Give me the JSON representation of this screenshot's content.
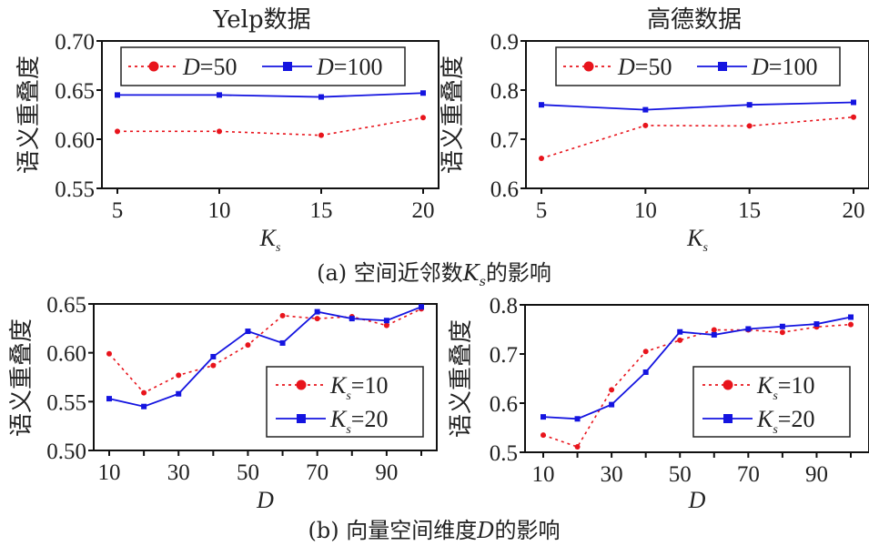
{
  "captions": {
    "a": "(a) 空间近邻数K的影响",
    "a_prefix": "(a) 空间近邻数",
    "a_var": "K",
    "a_sub": "s",
    "a_suffix": "的影响",
    "b_prefix": "(b) 向量空间维度",
    "b_var": "D",
    "b_suffix": "的影响"
  },
  "chart_data": [
    {
      "id": "a-yelp",
      "type": "line",
      "title": "Yelp数据",
      "xlabel": "K",
      "xlabel_sub": "s",
      "ylabel": "语义重叠度",
      "x": [
        5,
        10,
        15,
        20
      ],
      "xticks": [
        "5",
        "10",
        "15",
        "20"
      ],
      "ylim": [
        0.55,
        0.7
      ],
      "yticks": [
        "0.55",
        "0.60",
        "0.65",
        "0.70"
      ],
      "yticks_values": [
        0.55,
        0.6,
        0.65,
        0.7
      ],
      "legend": "top",
      "grid": false,
      "series": [
        {
          "name": "D=50",
          "var": "D",
          "eq": "=50",
          "color": "#e8141c",
          "style": "dotted",
          "marker": "circle",
          "values": [
            0.608,
            0.608,
            0.604,
            0.622
          ]
        },
        {
          "name": "D=100",
          "var": "D",
          "eq": "=100",
          "color": "#1414e0",
          "style": "solid",
          "marker": "square",
          "values": [
            0.645,
            0.645,
            0.643,
            0.647
          ]
        }
      ]
    },
    {
      "id": "a-gaode",
      "type": "line",
      "title": "高德数据",
      "xlabel": "K",
      "xlabel_sub": "s",
      "ylabel": "语义重叠度",
      "x": [
        5,
        10,
        15,
        20
      ],
      "xticks": [
        "5",
        "10",
        "15",
        "20"
      ],
      "ylim": [
        0.6,
        0.9
      ],
      "yticks": [
        "0.6",
        "0.7",
        "0.8",
        "0.9"
      ],
      "yticks_values": [
        0.6,
        0.7,
        0.8,
        0.9
      ],
      "legend": "top",
      "grid": false,
      "series": [
        {
          "name": "D=50",
          "var": "D",
          "eq": "=50",
          "color": "#e8141c",
          "style": "dotted",
          "marker": "circle",
          "values": [
            0.661,
            0.728,
            0.727,
            0.745
          ]
        },
        {
          "name": "D=100",
          "var": "D",
          "eq": "=100",
          "color": "#1414e0",
          "style": "solid",
          "marker": "square",
          "values": [
            0.77,
            0.76,
            0.77,
            0.775
          ]
        }
      ]
    },
    {
      "id": "b-yelp",
      "type": "line",
      "title": "",
      "xlabel": "D",
      "xlabel_sub": "",
      "ylabel": "语义重叠度",
      "x": [
        10,
        20,
        30,
        40,
        50,
        60,
        70,
        80,
        90,
        100
      ],
      "xticks": [
        "10",
        "30",
        "50",
        "70",
        "90"
      ],
      "xticks_values": [
        10,
        30,
        50,
        70,
        90
      ],
      "ylim": [
        0.5,
        0.65
      ],
      "yticks": [
        "0.50",
        "0.55",
        "0.60",
        "0.65"
      ],
      "yticks_values": [
        0.5,
        0.55,
        0.6,
        0.65
      ],
      "legend": "bottom-right",
      "grid": false,
      "series": [
        {
          "name": "Ks=10",
          "var": "K",
          "sub": "s",
          "eq": "=10",
          "color": "#e8141c",
          "style": "dotted",
          "marker": "circle",
          "values": [
            0.599,
            0.559,
            0.577,
            0.587,
            0.608,
            0.638,
            0.635,
            0.637,
            0.628,
            0.645
          ]
        },
        {
          "name": "Ks=20",
          "var": "K",
          "sub": "s",
          "eq": "=20",
          "color": "#1414e0",
          "style": "solid",
          "marker": "square",
          "values": [
            0.553,
            0.545,
            0.558,
            0.596,
            0.622,
            0.61,
            0.642,
            0.635,
            0.633,
            0.647
          ]
        }
      ]
    },
    {
      "id": "b-gaode",
      "type": "line",
      "title": "",
      "xlabel": "D",
      "xlabel_sub": "",
      "ylabel": "语义重叠度",
      "x": [
        10,
        20,
        30,
        40,
        50,
        60,
        70,
        80,
        90,
        100
      ],
      "xticks": [
        "10",
        "30",
        "50",
        "70",
        "90"
      ],
      "xticks_values": [
        10,
        30,
        50,
        70,
        90
      ],
      "ylim": [
        0.5,
        0.8
      ],
      "yticks": [
        "0.5",
        "0.6",
        "0.7",
        "0.8"
      ],
      "yticks_values": [
        0.5,
        0.6,
        0.7,
        0.8
      ],
      "legend": "bottom-right",
      "grid": false,
      "series": [
        {
          "name": "Ks=10",
          "var": "K",
          "sub": "s",
          "eq": "=10",
          "color": "#e8141c",
          "style": "dotted",
          "marker": "circle",
          "values": [
            0.535,
            0.511,
            0.627,
            0.705,
            0.728,
            0.749,
            0.749,
            0.744,
            0.755,
            0.76
          ]
        },
        {
          "name": "Ks=20",
          "var": "K",
          "sub": "s",
          "eq": "=20",
          "color": "#1414e0",
          "style": "solid",
          "marker": "square",
          "values": [
            0.572,
            0.568,
            0.597,
            0.663,
            0.745,
            0.739,
            0.751,
            0.756,
            0.761,
            0.775
          ]
        }
      ]
    }
  ]
}
